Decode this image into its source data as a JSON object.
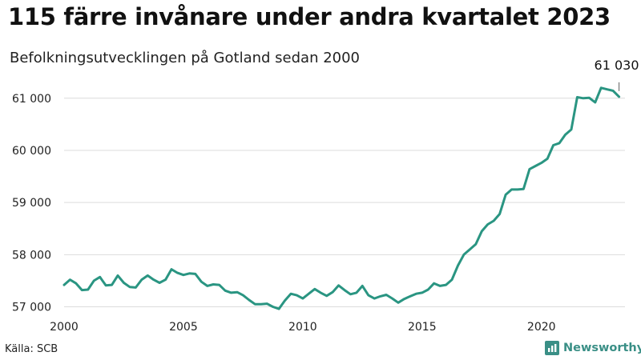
{
  "chart_data": {
    "type": "line",
    "title": "115 färre invånare under andra kvartalet 2023",
    "subtitle": "Befolkningsutvecklingen på Gotland sedan 2000",
    "xlabel": "",
    "ylabel": "",
    "x_ticks": [
      "2000",
      "2005",
      "2010",
      "2015",
      "2020"
    ],
    "y_ticks": [
      "57 000",
      "58 000",
      "59 000",
      "60 000",
      "61 000"
    ],
    "ylim": [
      56900,
      61350
    ],
    "xlim": [
      2000,
      2023.5
    ],
    "grid": true,
    "line_color": "#2a9582",
    "series": [
      {
        "x": [
          2000.0,
          2000.25,
          2000.5,
          2000.75,
          2001.0,
          2001.25,
          2001.5,
          2001.75,
          2002.0,
          2002.25,
          2002.5,
          2002.75,
          2003.0,
          2003.25,
          2003.5,
          2003.75,
          2004.0,
          2004.25,
          2004.5,
          2004.75,
          2005.0,
          2005.25,
          2005.5,
          2005.75,
          2006.0,
          2006.25,
          2006.5,
          2006.75,
          2007.0,
          2007.25,
          2007.5,
          2007.75,
          2008.0,
          2008.25,
          2008.5,
          2008.75,
          2009.0,
          2009.25,
          2009.5,
          2009.75,
          2010.0,
          2010.25,
          2010.5,
          2010.75,
          2011.0,
          2011.25,
          2011.5,
          2011.75,
          2012.0,
          2012.25,
          2012.5,
          2012.75,
          2013.0,
          2013.25,
          2013.5,
          2013.75,
          2014.0,
          2014.25,
          2014.5,
          2014.75,
          2015.0,
          2015.25,
          2015.5,
          2015.75,
          2016.0,
          2016.25,
          2016.5,
          2016.75,
          2017.0,
          2017.25,
          2017.5,
          2017.75,
          2018.0,
          2018.25,
          2018.5,
          2018.75,
          2019.0,
          2019.25,
          2019.5,
          2019.75,
          2020.0,
          2020.25,
          2020.5,
          2020.75,
          2021.0,
          2021.25,
          2021.5,
          2021.75,
          2022.0,
          2022.25,
          2022.5,
          2022.75,
          2023.0,
          2023.25
        ],
        "values": [
          57420,
          57520,
          57450,
          57320,
          57330,
          57500,
          57570,
          57410,
          57420,
          57600,
          57460,
          57380,
          57370,
          57520,
          57600,
          57520,
          57460,
          57520,
          57720,
          57650,
          57610,
          57640,
          57630,
          57480,
          57400,
          57430,
          57420,
          57310,
          57270,
          57280,
          57220,
          57130,
          57050,
          57050,
          57060,
          57000,
          56960,
          57120,
          57250,
          57220,
          57160,
          57250,
          57340,
          57270,
          57210,
          57280,
          57410,
          57320,
          57240,
          57270,
          57400,
          57220,
          57160,
          57200,
          57230,
          57160,
          57080,
          57150,
          57200,
          57250,
          57270,
          57330,
          57450,
          57400,
          57420,
          57520,
          57790,
          58000,
          58100,
          58200,
          58450,
          58580,
          58650,
          58780,
          59150,
          59250,
          59250,
          59260,
          59640,
          59700,
          59760,
          59840,
          60100,
          60140,
          60300,
          60400,
          61020,
          61000,
          61010,
          60920,
          61200,
          61170,
          61145,
          61030
        ]
      }
    ],
    "annotations": [
      {
        "text": "61 030"
      }
    ],
    "source": "Källa: SCB",
    "brand": "Newsworthy"
  }
}
